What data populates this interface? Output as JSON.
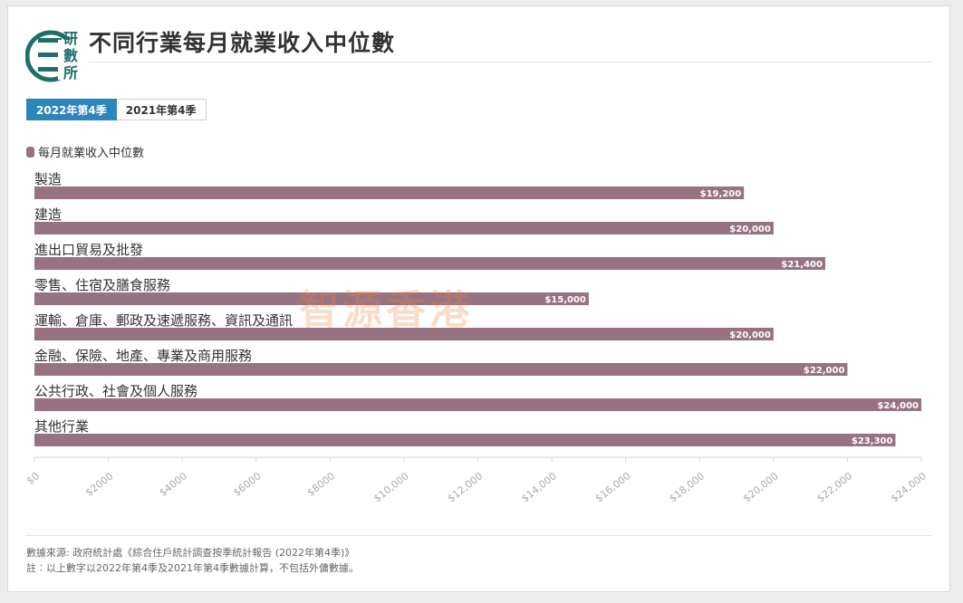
{
  "header": {
    "logo_text": "研數所",
    "title": "不同行業每月就業收入中位數"
  },
  "tabs": [
    {
      "label": "2022年第4季",
      "active": true
    },
    {
      "label": "2021年第4季",
      "active": false
    }
  ],
  "watermark": "智源香港",
  "footnotes": {
    "source": "數據來源: 政府統計處《綜合住戶統計調查按季統計報告 (2022年第4季)》",
    "note": "註︰以上數字以2022年第4季及2021年第4季數據計算，不包括外傭數據。"
  },
  "colors": {
    "bar": "#977282",
    "active_tab": "#2a86bb",
    "logo": "#1e6f6a"
  },
  "chart_data": {
    "type": "bar",
    "orientation": "horizontal",
    "title": "不同行業每月就業收入中位數",
    "categories": [
      "製造",
      "建造",
      "進出口貿易及批發",
      "零售、住宿及膳食服務",
      "運輸、倉庫、郵政及速遞服務、資訊及通訊",
      "金融、保險、地產、專業及商用服務",
      "公共行政、社會及個人服務",
      "其他行業"
    ],
    "series": [
      {
        "name": "每月就業收入中位數",
        "values": [
          19200,
          20000,
          21400,
          15000,
          20000,
          22000,
          24000,
          23300
        ],
        "labels": [
          "$19,200",
          "$20,000",
          "$21,400",
          "$15,000",
          "$20,000",
          "$22,000",
          "$24,000",
          "$23,300"
        ]
      }
    ],
    "xlim": [
      0,
      24000
    ],
    "xticks": [
      "$0",
      "$2000",
      "$4000",
      "$6000",
      "$8000",
      "$10,000",
      "$12,000",
      "$14,000",
      "$16,000",
      "$18,000",
      "$20,000",
      "$22,000",
      "$24,000"
    ],
    "legend_position": "top-left",
    "grid": false
  }
}
